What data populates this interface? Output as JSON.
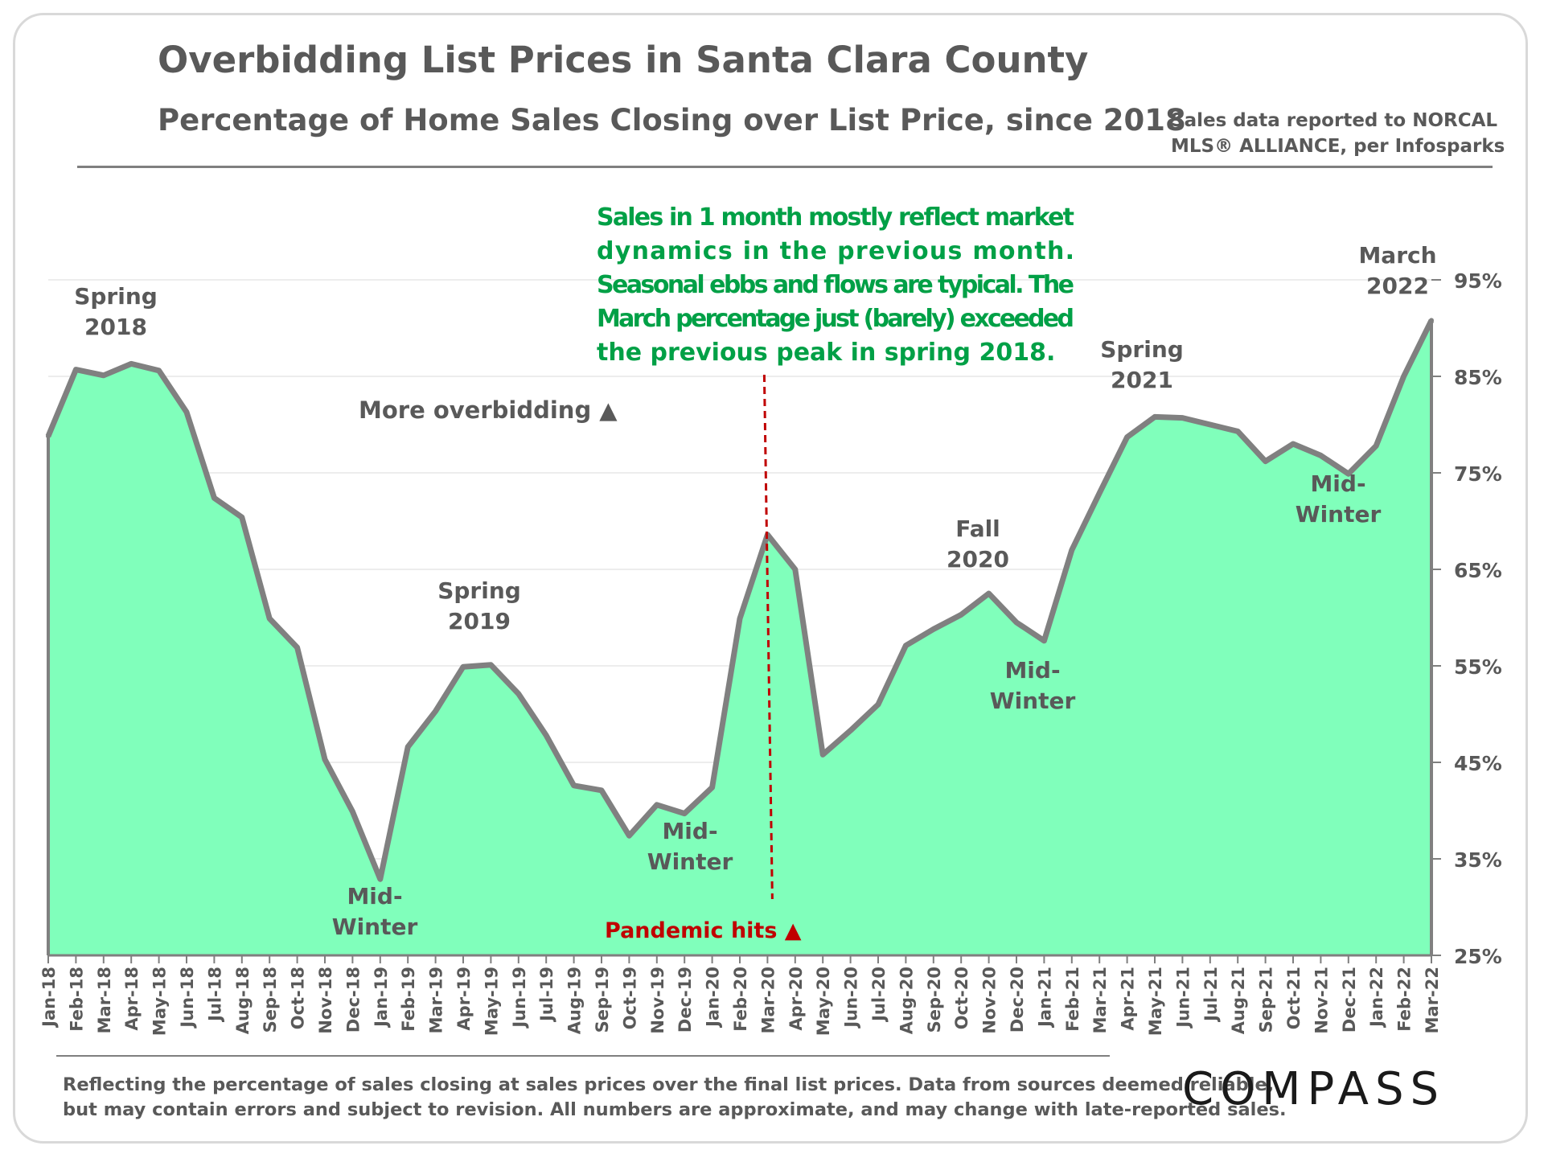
{
  "header": {
    "title": "Overbidding List Prices in Santa Clara County",
    "subtitle": "Percentage of Home Sales Closing over List Price, since 2018",
    "source_line1": "Sales data reported to NORCAL",
    "source_line2": "MLS® ALLIANCE, per Infosparks"
  },
  "footer": {
    "note_line1": "Reflecting the percentage of sales closing at sales prices over the final list prices. Data from sources deemed reliable,",
    "note_line2": "but may contain errors and subject to revision. All numbers are approximate, and may change with late-reported sales.",
    "logo": "COMPASS"
  },
  "colors": {
    "area_fill": "#80ffbb",
    "line": "#808080",
    "axis": "#7f7f7f",
    "label_text": "#595959",
    "callout_text": "#00a046",
    "pandemic": "#c00000"
  },
  "chart_data": {
    "type": "area",
    "title": "Overbidding List Prices in Santa Clara County",
    "subtitle": "Percentage of Home Sales Closing over List Price, since 2018",
    "xlabel": "",
    "ylabel": "",
    "ylim": [
      25,
      95
    ],
    "y_axis_position": "right",
    "yticks": [
      25,
      35,
      45,
      55,
      65,
      75,
      85,
      95
    ],
    "ytick_labels": [
      "25%",
      "35%",
      "45%",
      "55%",
      "65%",
      "75%",
      "85%",
      "95%"
    ],
    "categories": [
      "Jan-18",
      "Feb-18",
      "Mar-18",
      "Apr-18",
      "May-18",
      "Jun-18",
      "Jul-18",
      "Aug-18",
      "Sep-18",
      "Oct-18",
      "Nov-18",
      "Dec-18",
      "Jan-19",
      "Feb-19",
      "Mar-19",
      "Apr-19",
      "May-19",
      "Jun-19",
      "Jul-19",
      "Aug-19",
      "Sep-19",
      "Oct-19",
      "Nov-19",
      "Dec-19",
      "Jan-20",
      "Feb-20",
      "Mar-20",
      "Apr-20",
      "May-20",
      "Jun-20",
      "Jul-20",
      "Aug-20",
      "Sep-20",
      "Oct-20",
      "Nov-20",
      "Dec-20",
      "Jan-21",
      "Feb-21",
      "Mar-21",
      "Apr-21",
      "May-21",
      "Jun-21",
      "Jul-21",
      "Aug-21",
      "Sep-21",
      "Oct-21",
      "Nov-21",
      "Dec-21",
      "Jan-22",
      "Feb-22",
      "Mar-22"
    ],
    "series": [
      {
        "name": "Percentage of Home Sales Closing over List Price",
        "values": [
          78.8,
          85.7,
          85.1,
          86.3,
          85.6,
          81.3,
          72.4,
          70.4,
          59.9,
          56.9,
          45.3,
          39.9,
          32.9,
          46.6,
          50.3,
          54.9,
          55.1,
          52.1,
          47.8,
          42.6,
          42.1,
          37.4,
          40.6,
          39.7,
          42.4,
          59.9,
          68.6,
          65.0,
          45.8,
          48.3,
          51.0,
          57.1,
          58.8,
          60.3,
          62.5,
          59.5,
          57.6,
          67.0,
          72.9,
          78.7,
          80.8,
          80.7,
          80.0,
          79.3,
          76.2,
          78.0,
          76.8,
          74.9,
          77.8,
          85.0,
          90.8
        ]
      }
    ],
    "annotations": [
      {
        "text_lines": [
          "Spring",
          "2018"
        ],
        "category": "Mar-18"
      },
      {
        "text_lines": [
          "Mid-",
          "Winter"
        ],
        "category": "Jan-19"
      },
      {
        "text_lines": [
          "Spring",
          "2019"
        ],
        "category": "Apr-19"
      },
      {
        "text_lines": [
          "Mid-",
          "Winter"
        ],
        "category": "Dec-19"
      },
      {
        "text_lines": [
          "Fall",
          "2020"
        ],
        "category": "Nov-20"
      },
      {
        "text_lines": [
          "Mid-",
          "Winter"
        ],
        "category": "Jan-21"
      },
      {
        "text_lines": [
          "Spring",
          "2021"
        ],
        "category": "May-21"
      },
      {
        "text_lines": [
          "Mid-",
          "Winter"
        ],
        "category": "Dec-21"
      },
      {
        "text_lines": [
          "March",
          "2022"
        ],
        "category": "Mar-22"
      }
    ],
    "overbidding_label": "More overbidding ▲",
    "pandemic_label": "Pandemic hits ▲",
    "pandemic_marker_category": "Mar-20",
    "callout_lines": [
      "Sales in 1 month mostly reflect market",
      "dynamics in the previous month.",
      "Seasonal ebbs and flows are typical. The",
      "March percentage just (barely) exceeded",
      "the previous peak in spring 2018."
    ]
  }
}
